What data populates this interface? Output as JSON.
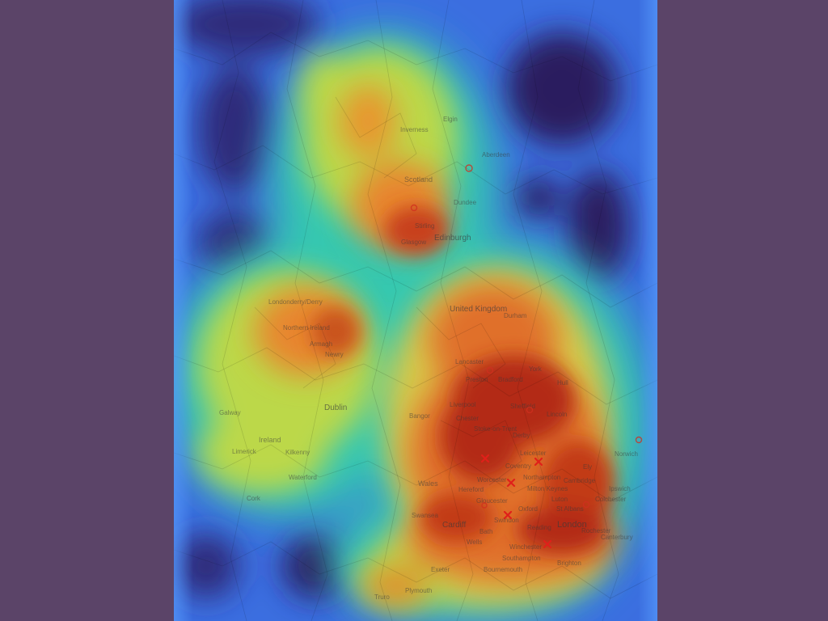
{
  "map": {
    "colors": {
      "background_sea": "#2b1e6b",
      "low": "#3d6fe0",
      "mid": "#34c4a4",
      "high_mid": "#c8d84a",
      "high": "#e07a2e",
      "peak": "#b22312",
      "panel": "#5b4468"
    },
    "labels": {
      "inverness": "Inverness",
      "elgin": "Elgin",
      "aberdeen": "Aberdeen",
      "scotland": "Scotland",
      "dundee": "Dundee",
      "stirling": "Stirling",
      "glasgow": "Glasgow",
      "edinburgh": "Edinburgh",
      "londonderry": "Londonderry/Derry",
      "northern_ireland": "Northern Ireland",
      "armagh": "Armagh",
      "newry": "Newry",
      "united_kingdom": "United Kingdom",
      "durham": "Durham",
      "lancaster": "Lancaster",
      "preston": "Preston",
      "bradford": "Bradford",
      "york": "York",
      "hull": "Hull",
      "liverpool": "Liverpool",
      "sheffield": "Sheffield",
      "chester": "Chester",
      "lincoln": "Lincoln",
      "stoke": "Stoke-on-Trent",
      "derby": "Derby",
      "bangor": "Bangor",
      "dublin": "Dublin",
      "galway": "Galway",
      "ireland": "Ireland",
      "limerick": "Limerick",
      "kilkenny": "Kilkenny",
      "waterford": "Waterford",
      "cork": "Cork",
      "leicester": "Leicester",
      "coventry": "Coventry",
      "ely": "Ely",
      "norwich": "Norwich",
      "worcester": "Worcester",
      "northampton": "Northampton",
      "hereford": "Hereford",
      "milton_keynes": "Milton Keynes",
      "cambridge": "Cambridge",
      "ipswich": "Ipswich",
      "wales": "Wales",
      "gloucester": "Gloucester",
      "oxford": "Oxford",
      "luton": "Luton",
      "st_albans": "St Albans",
      "colchester": "Colchester",
      "swansea": "Swansea",
      "swindon": "Swindon",
      "cardiff": "Cardiff",
      "reading": "Reading",
      "london": "London",
      "rochester": "Rochester",
      "bath": "Bath",
      "wells": "Wells",
      "canterbury": "Canterbury",
      "winchester": "Winchester",
      "southampton": "Southampton",
      "brighton": "Brighton",
      "exeter": "Exeter",
      "bournemouth": "Bournemouth",
      "truro": "Truro",
      "plymouth": "Plymouth"
    }
  }
}
